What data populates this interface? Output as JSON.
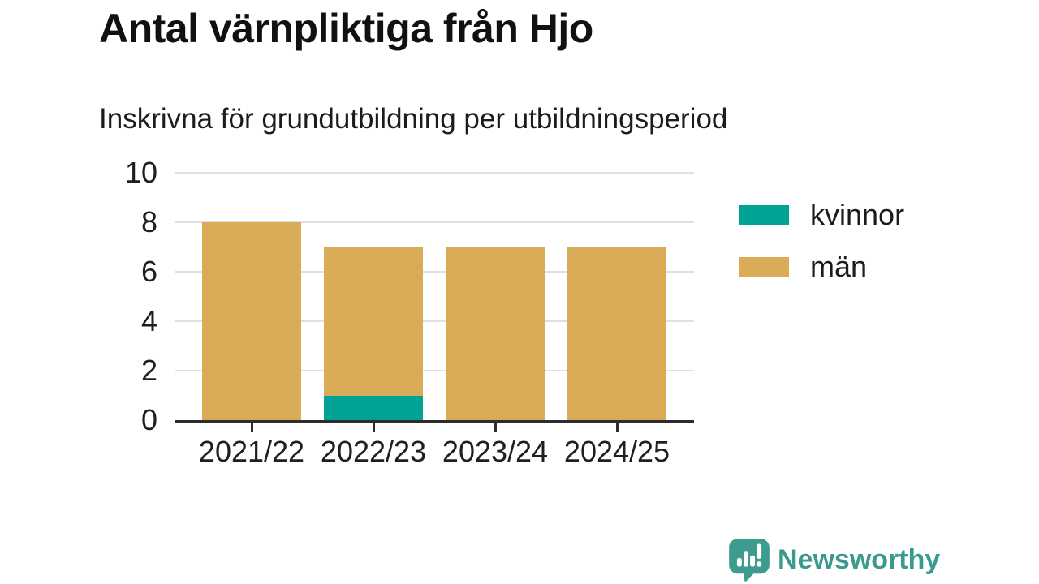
{
  "header": {
    "title": "Antal värnpliktiga från Hjo",
    "subtitle": "Inskrivna för grundutbildning per utbildningsperiod"
  },
  "chart_data": {
    "type": "bar",
    "stacked": true,
    "title": "Antal värnpliktiga från Hjo",
    "subtitle": "Inskrivna för grundutbildning per utbildningsperiod",
    "categories": [
      "2021/22",
      "2022/23",
      "2023/24",
      "2024/25"
    ],
    "series": [
      {
        "name": "kvinnor",
        "color": "#00A396",
        "values": [
          0,
          1,
          0,
          0
        ]
      },
      {
        "name": "män",
        "color": "#D9AB57",
        "values": [
          8,
          6,
          7,
          7
        ]
      }
    ],
    "totals": [
      8,
      7,
      7,
      7
    ],
    "xlabel": "",
    "ylabel": "",
    "ylim": [
      0,
      10
    ],
    "yticks": [
      0,
      2,
      4,
      6,
      8,
      10
    ],
    "grid": true,
    "legend_position": "right"
  },
  "branding": {
    "logo_text": "Newsworthy",
    "logo_color": "#3B9A90"
  },
  "colors": {
    "kvinnor": "#00A396",
    "man": "#D9AB57",
    "axis": "#2d2d2d",
    "gridline": "#dfdfdf",
    "text": "#1c1c1c",
    "brand_teal": "#3B9A90"
  }
}
